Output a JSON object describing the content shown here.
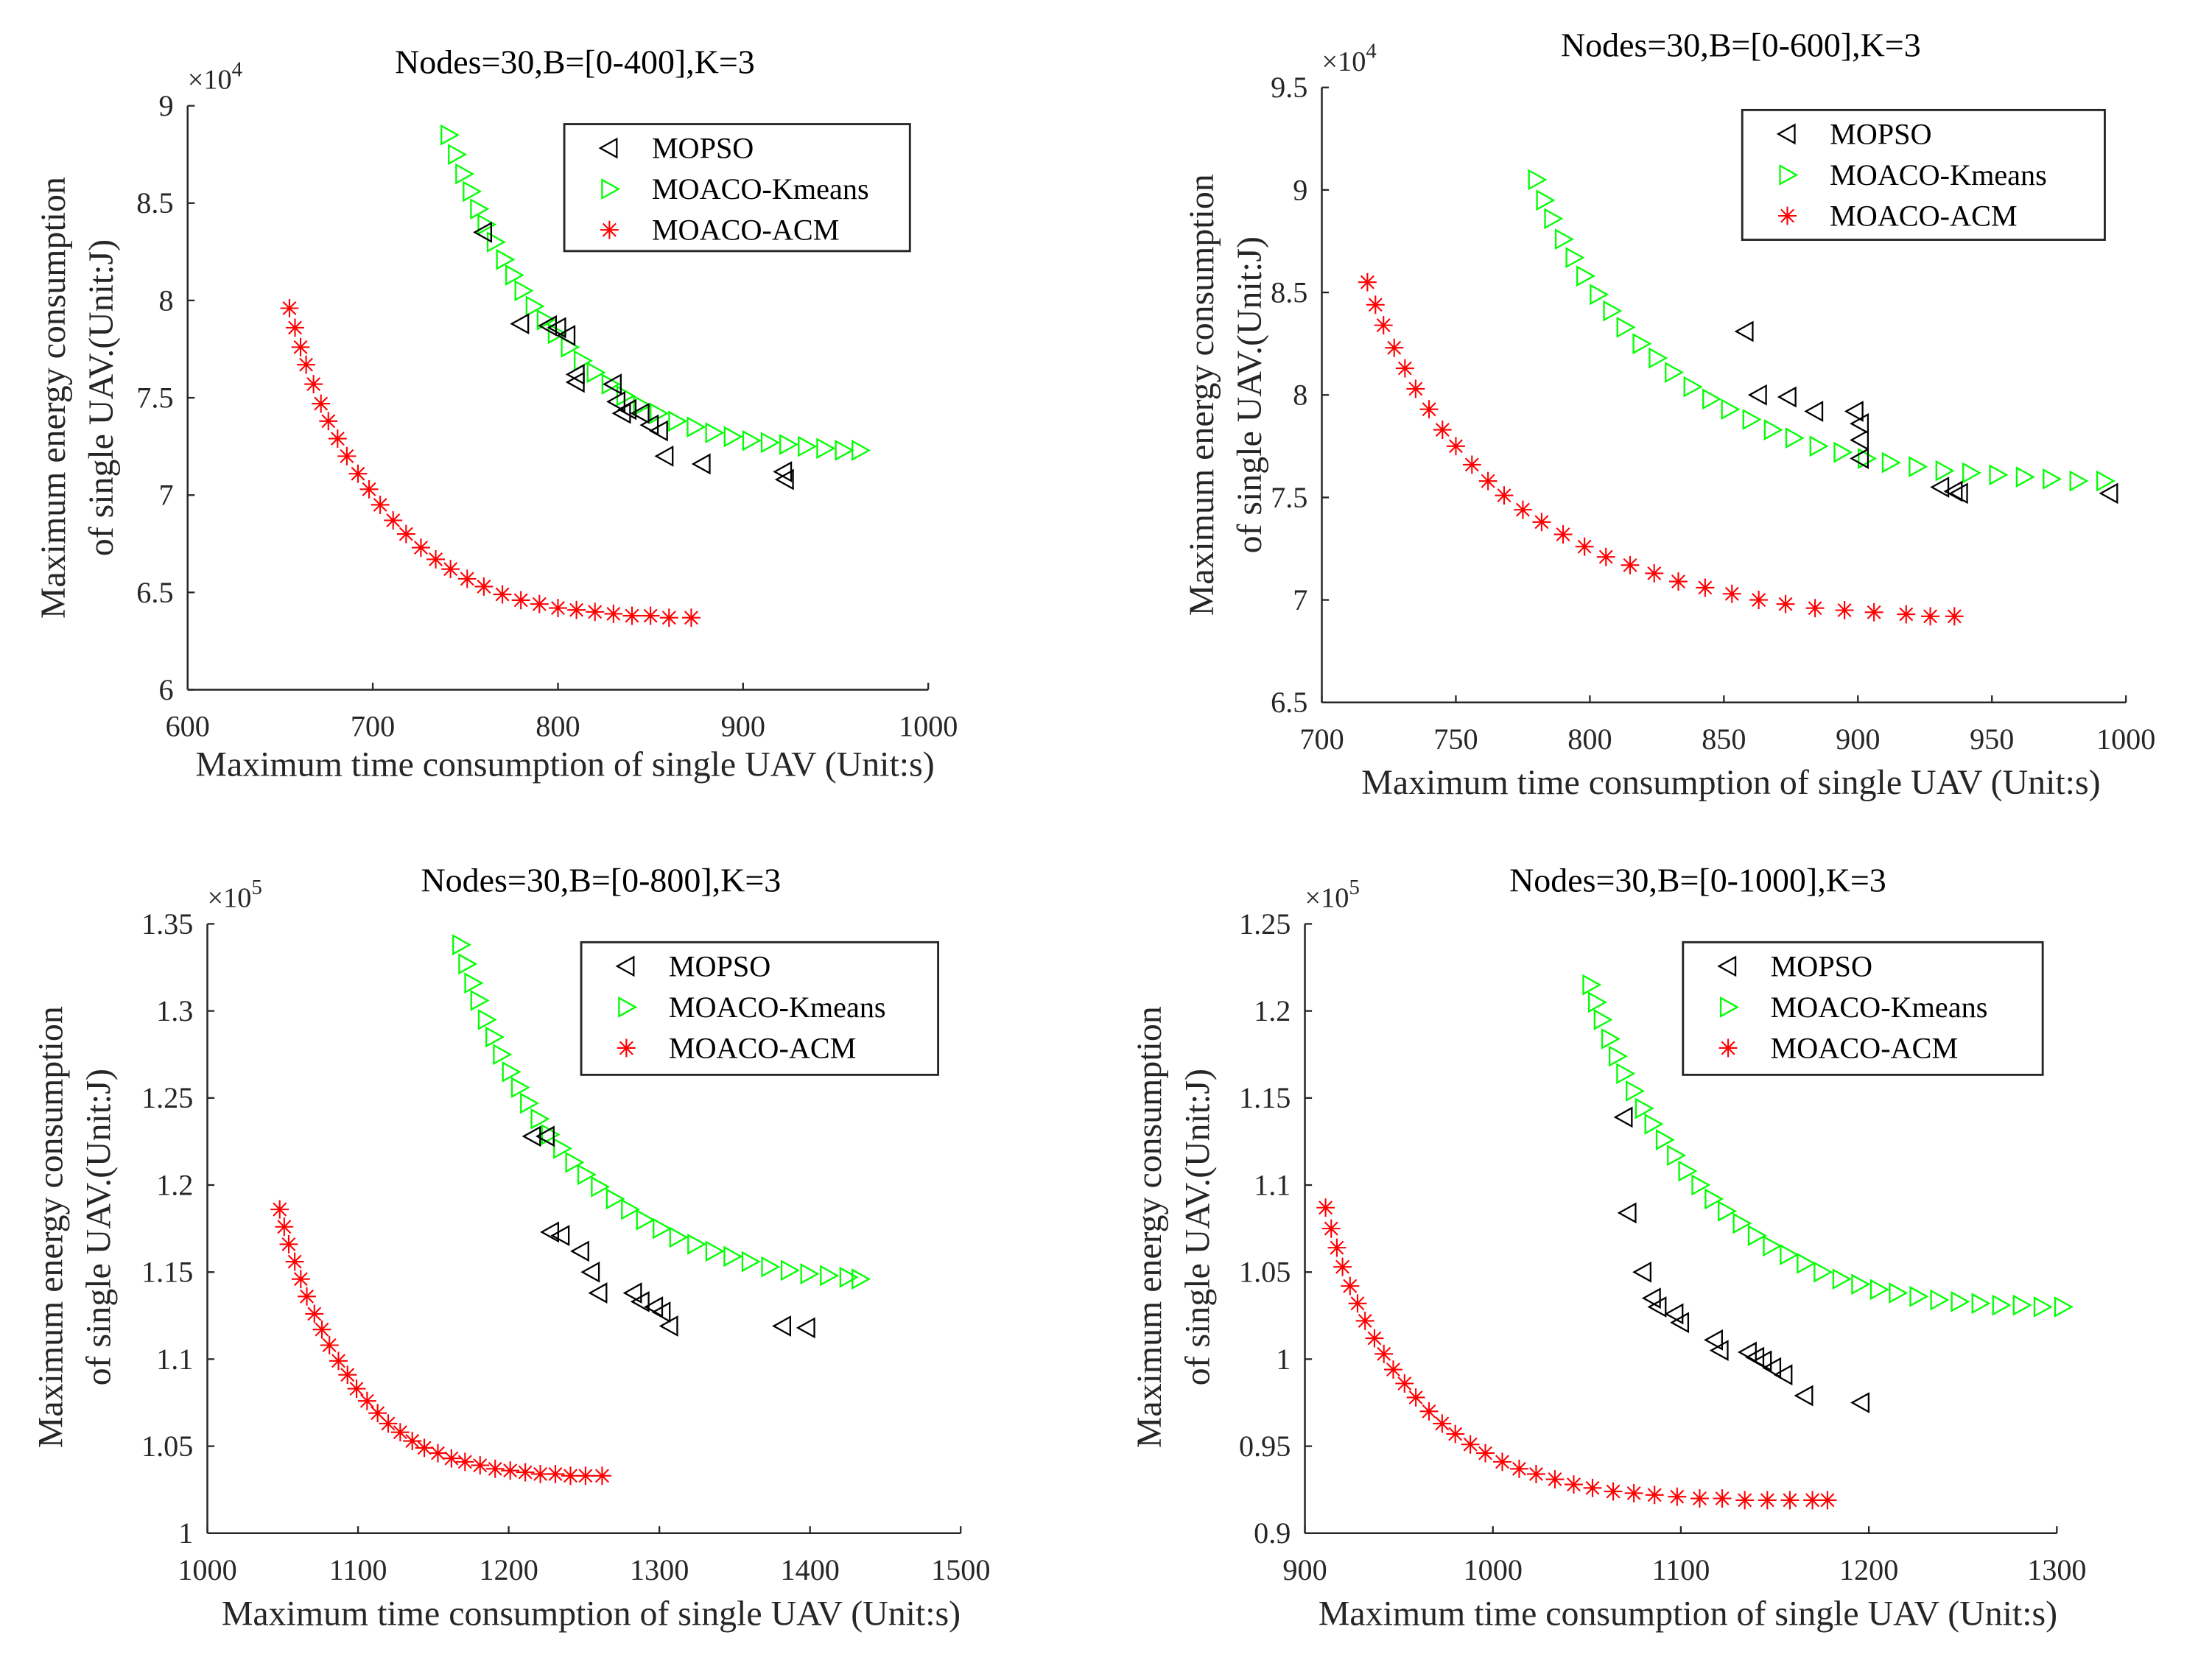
{
  "colors": {
    "MOPSO": "#000000",
    "MOACO-Kmeans": "#00ff00",
    "MOACO-ACM": "#ff0000",
    "axis": "#262626"
  },
  "chart_data": [
    {
      "type": "scatter",
      "title": "Nodes=30,B=[0-400],K=3",
      "xlabel": "Maximum time consumption of single UAV (Unit:s)",
      "ylabel": [
        "Maximum energy consumption",
        "of single UAV.(Unit:J)"
      ],
      "y_multiplier": "×10",
      "y_exponent": "4",
      "xlim": [
        600,
        1000
      ],
      "ylim": [
        6,
        9
      ],
      "xticks": [
        "600",
        "700",
        "800",
        "900",
        "1000"
      ],
      "yticks": [
        "6",
        "6.5",
        "7",
        "7.5",
        "8",
        "8.5",
        "9"
      ],
      "legend": "top-right",
      "series": [
        {
          "name": "MOPSO",
          "marker": "left-triangle",
          "x": [
            760,
            780,
            795,
            800,
            805,
            810,
            810,
            830,
            832,
            835,
            838,
            845,
            850,
            855,
            858,
            878,
            922,
            923
          ],
          "y": [
            8.35,
            7.88,
            7.87,
            7.86,
            7.82,
            7.62,
            7.58,
            7.57,
            7.48,
            7.42,
            7.44,
            7.42,
            7.36,
            7.33,
            7.2,
            7.16,
            7.12,
            7.08
          ]
        },
        {
          "name": "MOACO-Kmeans",
          "marker": "right-triangle",
          "x": [
            741,
            745,
            749,
            753,
            757,
            761,
            766,
            771,
            776,
            781,
            787,
            793,
            799,
            806,
            813,
            820,
            828,
            836,
            845,
            854,
            864,
            874,
            884,
            894,
            904,
            914,
            924,
            934,
            944,
            954,
            963
          ],
          "y": [
            8.85,
            8.75,
            8.65,
            8.56,
            8.47,
            8.39,
            8.3,
            8.21,
            8.13,
            8.05,
            7.97,
            7.9,
            7.83,
            7.76,
            7.69,
            7.63,
            7.57,
            7.51,
            7.46,
            7.42,
            7.38,
            7.35,
            7.32,
            7.3,
            7.28,
            7.27,
            7.26,
            7.25,
            7.24,
            7.23,
            7.23
          ]
        },
        {
          "name": "MOACO-ACM",
          "marker": "asterisk",
          "x": [
            655,
            658,
            661,
            664,
            668,
            672,
            676,
            681,
            686,
            692,
            698,
            704,
            711,
            718,
            726,
            734,
            742,
            751,
            760,
            770,
            780,
            790,
            800,
            810,
            820,
            830,
            840,
            850,
            860,
            872
          ],
          "y": [
            7.96,
            7.86,
            7.76,
            7.67,
            7.57,
            7.47,
            7.38,
            7.29,
            7.2,
            7.11,
            7.03,
            6.95,
            6.87,
            6.8,
            6.73,
            6.67,
            6.62,
            6.57,
            6.53,
            6.49,
            6.46,
            6.44,
            6.42,
            6.41,
            6.4,
            6.39,
            6.38,
            6.38,
            6.37,
            6.37
          ]
        }
      ]
    },
    {
      "type": "scatter",
      "title": "Nodes=30,B=[0-600],K=3",
      "xlabel": "Maximum time consumption of single UAV (Unit:s)",
      "ylabel": [
        "Maximum energy consumption",
        "of single UAV.(Unit:J)"
      ],
      "y_multiplier": "×10",
      "y_exponent": "4",
      "xlim": [
        700,
        1000
      ],
      "ylim": [
        6.5,
        9.5
      ],
      "xticks": [
        "700",
        "750",
        "800",
        "850",
        "900",
        "950",
        "1000"
      ],
      "yticks": [
        "6.5",
        "7",
        "7.5",
        "8",
        "8.5",
        "9",
        "9.5"
      ],
      "legend": "top-right",
      "series": [
        {
          "name": "MOPSO",
          "marker": "left-triangle",
          "x": [
            858,
            863,
            874,
            884,
            899,
            901,
            901,
            901,
            931,
            936,
            938,
            994
          ],
          "y": [
            8.31,
            8.0,
            7.99,
            7.92,
            7.92,
            7.86,
            7.78,
            7.69,
            7.55,
            7.53,
            7.52,
            7.52
          ]
        },
        {
          "name": "MOACO-Kmeans",
          "marker": "right-triangle",
          "x": [
            780,
            783,
            786,
            790,
            794,
            798,
            803,
            808,
            813,
            819,
            825,
            831,
            838,
            845,
            852,
            860,
            868,
            876,
            885,
            894,
            903,
            912,
            922,
            932,
            942,
            952,
            962,
            972,
            982,
            992
          ],
          "y": [
            9.05,
            8.95,
            8.86,
            8.76,
            8.67,
            8.58,
            8.49,
            8.41,
            8.33,
            8.25,
            8.18,
            8.11,
            8.04,
            7.98,
            7.93,
            7.88,
            7.83,
            7.79,
            7.75,
            7.72,
            7.69,
            7.67,
            7.65,
            7.63,
            7.62,
            7.61,
            7.6,
            7.59,
            7.58,
            7.58
          ]
        },
        {
          "name": "MOACO-ACM",
          "marker": "asterisk",
          "x": [
            717,
            720,
            723,
            727,
            731,
            735,
            740,
            745,
            750,
            756,
            762,
            768,
            775,
            782,
            790,
            798,
            806,
            815,
            824,
            833,
            843,
            853,
            863,
            873,
            884,
            895,
            906,
            918,
            927,
            936
          ],
          "y": [
            8.55,
            8.44,
            8.34,
            8.23,
            8.13,
            8.03,
            7.93,
            7.83,
            7.75,
            7.66,
            7.58,
            7.51,
            7.44,
            7.38,
            7.32,
            7.26,
            7.21,
            7.17,
            7.13,
            7.09,
            7.06,
            7.03,
            7.0,
            6.98,
            6.96,
            6.95,
            6.94,
            6.93,
            6.92,
            6.92
          ]
        }
      ]
    },
    {
      "type": "scatter",
      "title": "Nodes=30,B=[0-800],K=3",
      "xlabel": "Maximum time consumption of single UAV (Unit:s)",
      "ylabel": [
        "Maximum energy consumption",
        "of single UAV.(Unit:J)"
      ],
      "y_multiplier": "×10",
      "y_exponent": "5",
      "xlim": [
        1000,
        1500
      ],
      "ylim": [
        1,
        1.35
      ],
      "xticks": [
        "1000",
        "1100",
        "1200",
        "1300",
        "1400",
        "1500"
      ],
      "yticks": [
        "1",
        "1.05",
        "1.1",
        "1.15",
        "1.2",
        "1.25",
        "1.3",
        "1.35"
      ],
      "legend": "top-right",
      "series": [
        {
          "name": "MOPSO",
          "marker": "left-triangle",
          "x": [
            1216,
            1225,
            1228,
            1235,
            1248,
            1255,
            1260,
            1283,
            1288,
            1297,
            1302,
            1307,
            1382,
            1398
          ],
          "y": [
            1.228,
            1.228,
            1.173,
            1.171,
            1.162,
            1.15,
            1.138,
            1.138,
            1.133,
            1.13,
            1.127,
            1.119,
            1.119,
            1.118
          ]
        },
        {
          "name": "MOACO-Kmeans",
          "marker": "right-triangle",
          "x": [
            1168,
            1172,
            1176,
            1180,
            1185,
            1190,
            1195,
            1201,
            1207,
            1213,
            1220,
            1227,
            1235,
            1243,
            1251,
            1260,
            1270,
            1280,
            1290,
            1301,
            1312,
            1324,
            1336,
            1348,
            1360,
            1373,
            1386,
            1399,
            1412,
            1425,
            1433
          ],
          "y": [
            1.338,
            1.327,
            1.316,
            1.306,
            1.295,
            1.285,
            1.275,
            1.265,
            1.256,
            1.247,
            1.238,
            1.229,
            1.221,
            1.213,
            1.206,
            1.199,
            1.192,
            1.186,
            1.18,
            1.175,
            1.17,
            1.166,
            1.162,
            1.159,
            1.156,
            1.153,
            1.151,
            1.149,
            1.148,
            1.147,
            1.146
          ]
        },
        {
          "name": "MOACO-ACM",
          "marker": "asterisk",
          "x": [
            1048,
            1051,
            1054,
            1058,
            1062,
            1066,
            1071,
            1076,
            1081,
            1087,
            1093,
            1099,
            1106,
            1113,
            1120,
            1128,
            1136,
            1144,
            1153,
            1162,
            1171,
            1181,
            1191,
            1201,
            1211,
            1221,
            1231,
            1241,
            1251,
            1262
          ],
          "y": [
            1.186,
            1.176,
            1.166,
            1.156,
            1.146,
            1.136,
            1.126,
            1.117,
            1.108,
            1.099,
            1.091,
            1.083,
            1.076,
            1.069,
            1.063,
            1.058,
            1.053,
            1.049,
            1.046,
            1.043,
            1.041,
            1.039,
            1.037,
            1.036,
            1.035,
            1.034,
            1.034,
            1.033,
            1.033,
            1.033
          ]
        }
      ]
    },
    {
      "type": "scatter",
      "title": "Nodes=30,B=[0-1000],K=3",
      "xlabel": "Maximum time consumption of single UAV (Unit:s)",
      "ylabel": [
        "Maximum energy consumption",
        "of single UAV.(Unit:J)"
      ],
      "y_multiplier": "×10",
      "y_exponent": "5",
      "xlim": [
        900,
        1300
      ],
      "ylim": [
        0.9,
        1.25
      ],
      "xticks": [
        "900",
        "1000",
        "1100",
        "1200",
        "1300"
      ],
      "yticks": [
        "0.9",
        "0.95",
        "1",
        "1.05",
        "1.1",
        "1.15",
        "1.2",
        "1.25"
      ],
      "legend": "top-right",
      "series": [
        {
          "name": "MOPSO",
          "marker": "left-triangle",
          "x": [
            1070,
            1072,
            1080,
            1085,
            1088,
            1097,
            1100,
            1118,
            1121,
            1136,
            1140,
            1144,
            1149,
            1155,
            1166,
            1196
          ],
          "y": [
            1.139,
            1.084,
            1.05,
            1.035,
            1.03,
            1.026,
            1.021,
            1.011,
            1.005,
            1.004,
            1.001,
            0.999,
            0.995,
            0.991,
            0.979,
            0.975
          ]
        },
        {
          "name": "MOACO-Kmeans",
          "marker": "right-triangle",
          "x": [
            1052,
            1055,
            1058,
            1062,
            1066,
            1070,
            1075,
            1080,
            1085,
            1091,
            1097,
            1103,
            1110,
            1117,
            1124,
            1132,
            1140,
            1148,
            1157,
            1166,
            1175,
            1185,
            1195,
            1205,
            1215,
            1226,
            1237,
            1248,
            1259,
            1270,
            1281,
            1292,
            1303
          ],
          "y": [
            1.215,
            1.205,
            1.195,
            1.184,
            1.174,
            1.164,
            1.154,
            1.144,
            1.135,
            1.126,
            1.117,
            1.108,
            1.1,
            1.092,
            1.085,
            1.078,
            1.071,
            1.065,
            1.06,
            1.055,
            1.05,
            1.046,
            1.043,
            1.04,
            1.038,
            1.036,
            1.034,
            1.033,
            1.032,
            1.031,
            1.031,
            1.03,
            1.03
          ]
        },
        {
          "name": "MOACO-ACM",
          "marker": "asterisk",
          "x": [
            911,
            914,
            917,
            920,
            924,
            928,
            932,
            937,
            942,
            947,
            953,
            959,
            966,
            973,
            980,
            988,
            996,
            1005,
            1014,
            1023,
            1033,
            1043,
            1053,
            1064,
            1075,
            1086,
            1098,
            1110,
            1122,
            1134,
            1146,
            1158,
            1170,
            1178
          ],
          "y": [
            1.087,
            1.075,
            1.064,
            1.053,
            1.042,
            1.032,
            1.022,
            1.012,
            1.003,
            0.994,
            0.986,
            0.978,
            0.97,
            0.963,
            0.957,
            0.951,
            0.946,
            0.941,
            0.937,
            0.934,
            0.931,
            0.928,
            0.926,
            0.924,
            0.923,
            0.922,
            0.921,
            0.92,
            0.92,
            0.919,
            0.919,
            0.919,
            0.919,
            0.919
          ]
        }
      ]
    }
  ]
}
